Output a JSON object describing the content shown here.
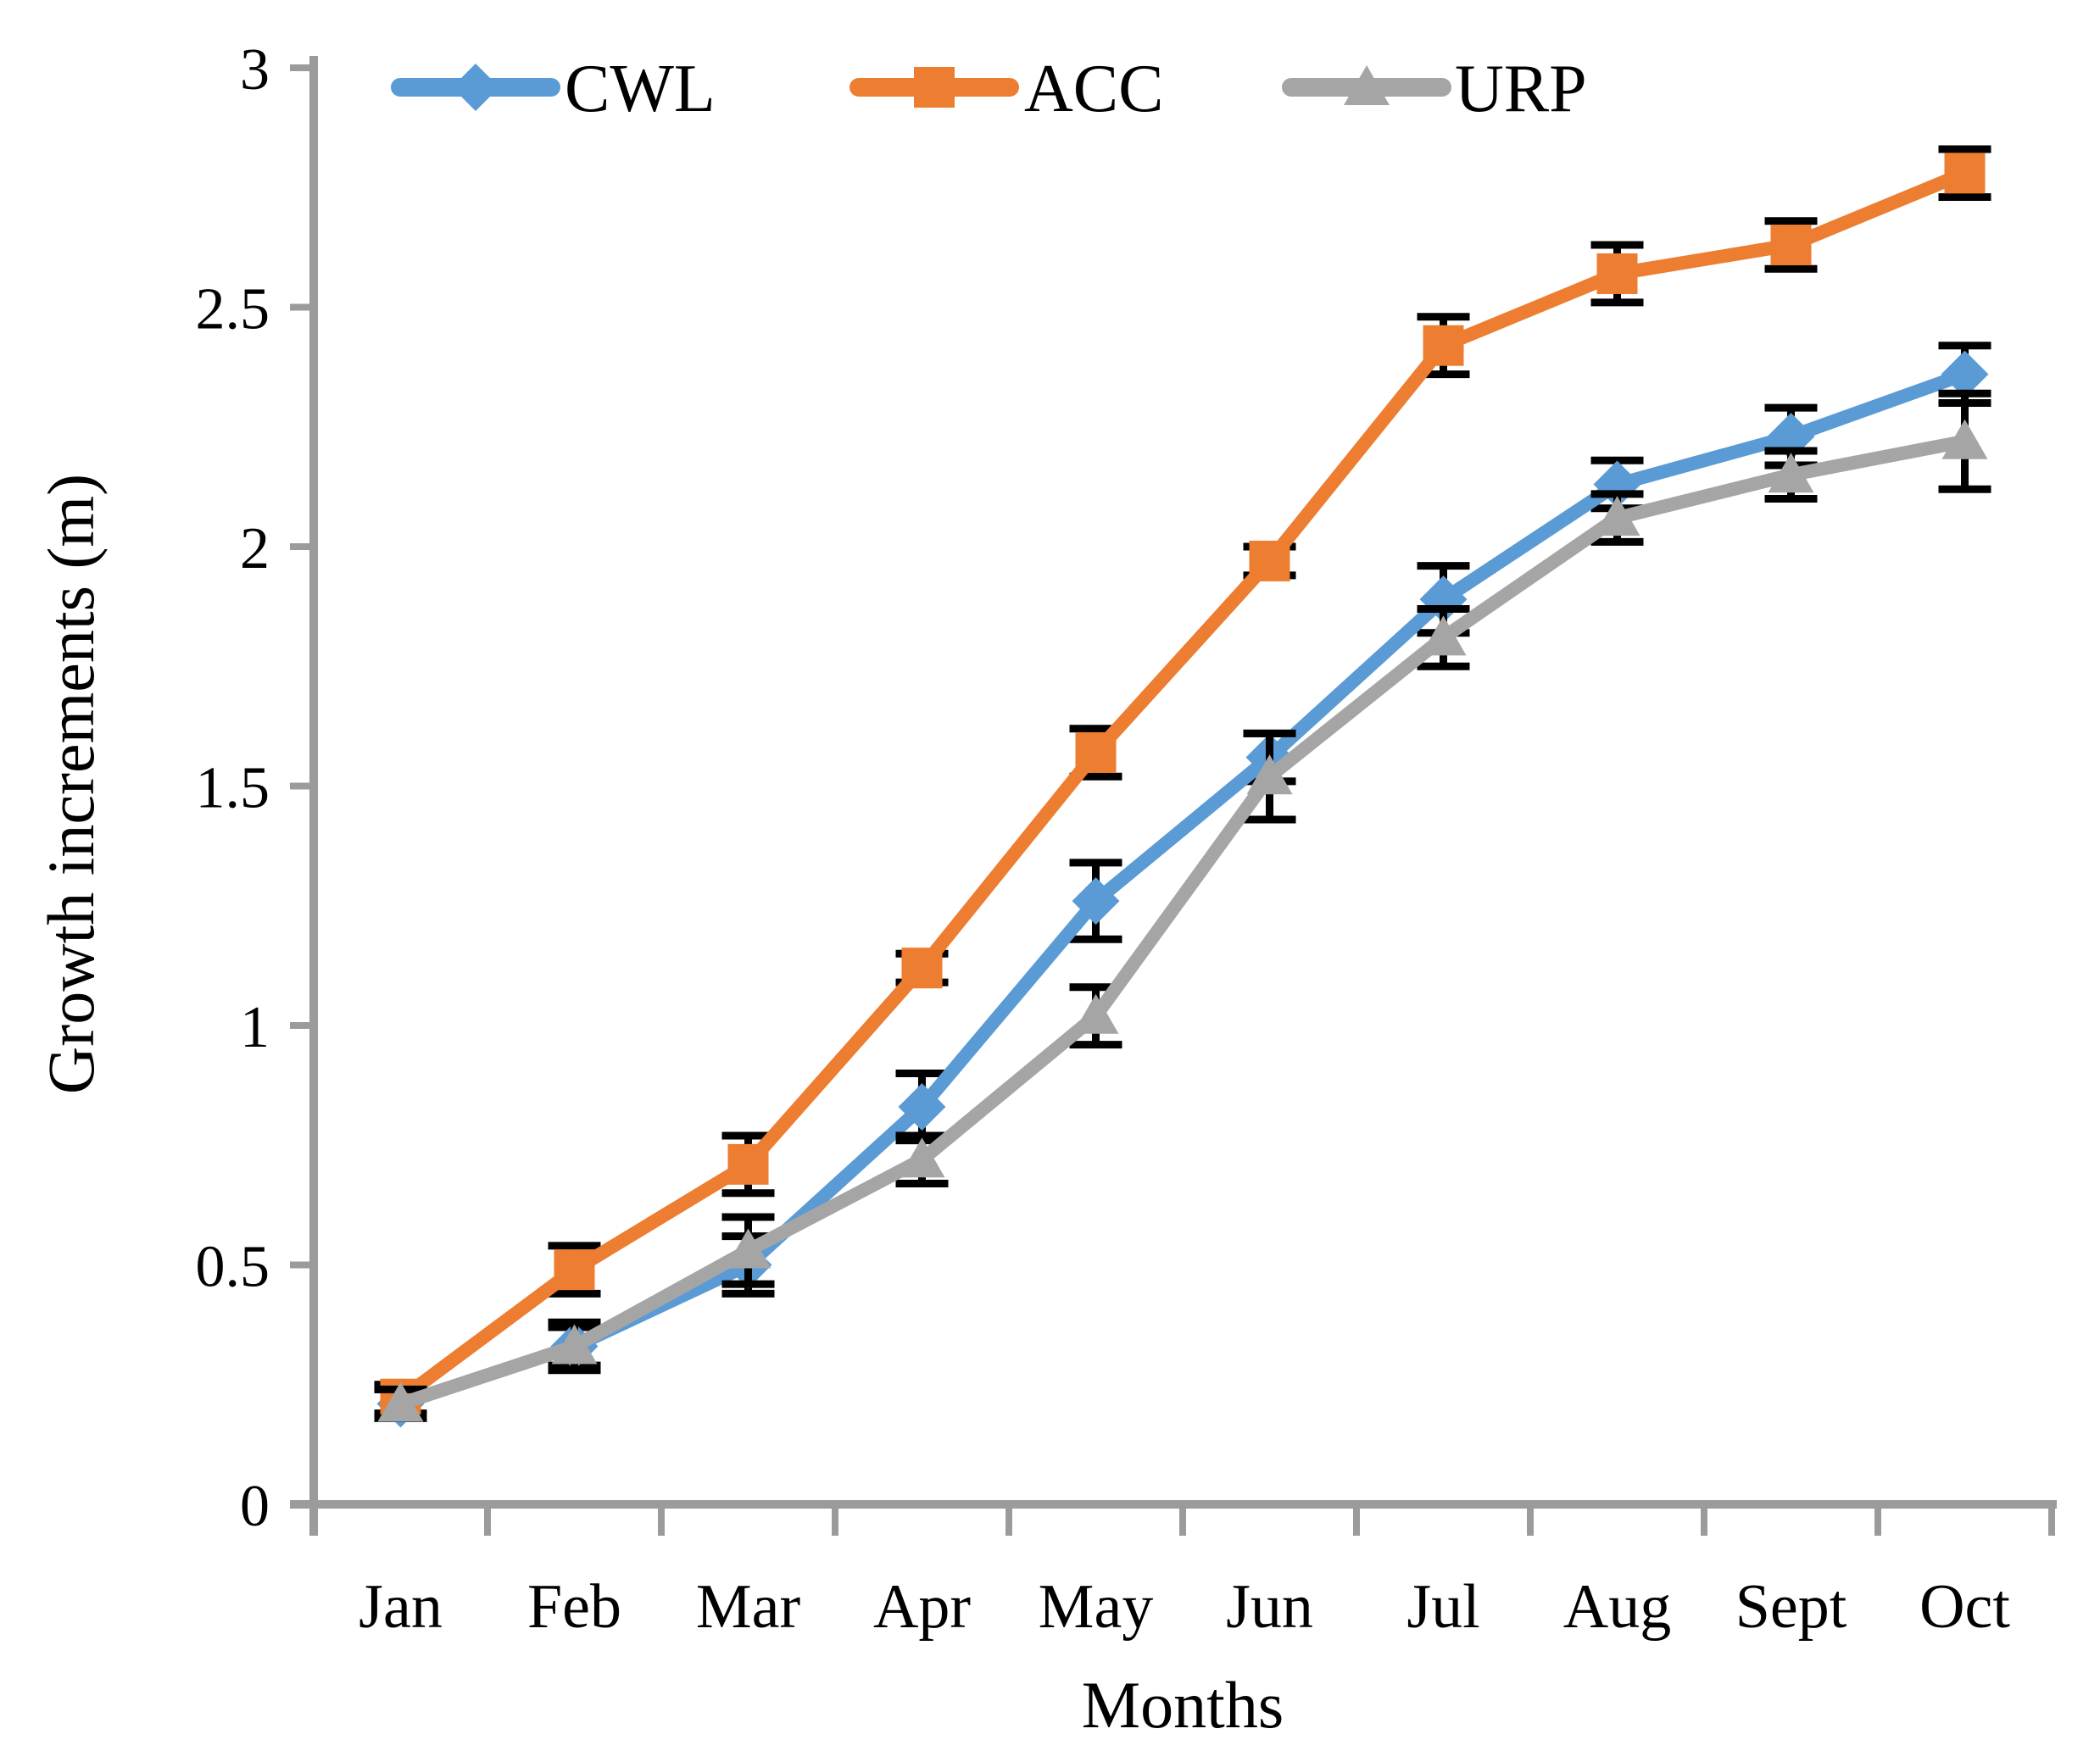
{
  "axes": {
    "x_title": "Months",
    "y_title": "Growth increments  (m)"
  },
  "chart_data": {
    "type": "line",
    "title": "",
    "xlabel": "Months",
    "ylabel": "Growth increments (m)",
    "categories": [
      "Jan",
      "Feb",
      "Mar",
      "Apr",
      "May",
      "Jun",
      "Jul",
      "Aug",
      "Sept",
      "Oct"
    ],
    "ylim": [
      0,
      3
    ],
    "yticks": [
      0,
      0.5,
      1,
      1.5,
      2,
      2.5,
      3
    ],
    "ytick_labels": [
      "0",
      "0.5",
      "1",
      "1.5",
      "2",
      "2.5",
      "3"
    ],
    "grid": false,
    "legend_position": "top-inside",
    "error_bars": true,
    "axis_color": "#9B9B9B",
    "error_bar_color": "#000000",
    "text_color": "#000000",
    "background_color": "#FFFFFF",
    "series": [
      {
        "name": "CWL",
        "marker": "diamond",
        "color": "#5B9BD5",
        "values": [
          0.21,
          0.33,
          0.5,
          0.83,
          1.26,
          1.56,
          1.89,
          2.13,
          2.23,
          2.36
        ],
        "errors": [
          0.03,
          0.04,
          0.06,
          0.07,
          0.08,
          0.05,
          0.07,
          0.05,
          0.06,
          0.06
        ]
      },
      {
        "name": "ACC",
        "marker": "square",
        "color": "#ED7D31",
        "values": [
          0.22,
          0.49,
          0.71,
          1.12,
          1.57,
          1.97,
          2.42,
          2.57,
          2.63,
          2.78
        ],
        "errors": [
          0.03,
          0.05,
          0.06,
          0.03,
          0.05,
          0.03,
          0.06,
          0.06,
          0.05,
          0.05
        ]
      },
      {
        "name": "URP",
        "marker": "triangle",
        "color": "#A5A5A5",
        "values": [
          0.21,
          0.33,
          0.53,
          0.72,
          1.02,
          1.52,
          1.81,
          2.06,
          2.15,
          2.22
        ],
        "errors": [
          0.03,
          0.05,
          0.07,
          0.05,
          0.06,
          0.09,
          0.06,
          0.05,
          0.05,
          0.1
        ]
      }
    ]
  }
}
